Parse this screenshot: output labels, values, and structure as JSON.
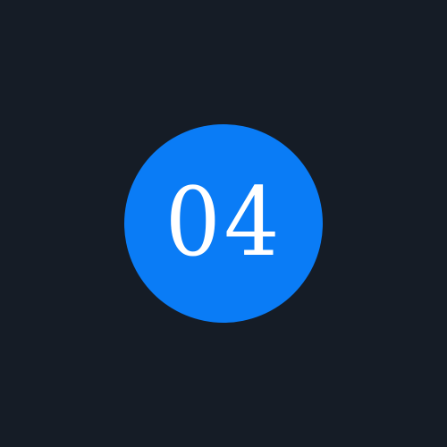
{
  "badge": {
    "number": "04",
    "color": "#0a7cf6",
    "text_color": "#ffffff"
  },
  "background_color": "#151c26"
}
